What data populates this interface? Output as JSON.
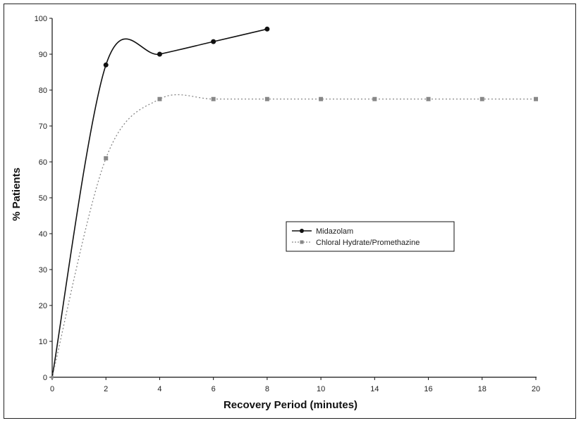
{
  "chart_data": {
    "type": "line",
    "title": "",
    "xlabel": "Recovery Period (minutes)",
    "ylabel": "% Patients",
    "x_ticks": [
      "0",
      "2",
      "4",
      "6",
      "8",
      "10",
      "14",
      "16",
      "18",
      "20"
    ],
    "y_ticks": [
      "0",
      "10",
      "20",
      "30",
      "40",
      "50",
      "60",
      "70",
      "80",
      "90",
      "100"
    ],
    "ylim": [
      0,
      100
    ],
    "legend_position": "center-right",
    "series": [
      {
        "name": "Midazolam",
        "x": [
          "0",
          "2",
          "4",
          "6",
          "8"
        ],
        "values": [
          0,
          87,
          90,
          93.5,
          97
        ],
        "color": "#111111",
        "line_style": "solid",
        "marker": "circle"
      },
      {
        "name": "Chloral Hydrate/Promethazine",
        "x": [
          "0",
          "2",
          "4",
          "6",
          "8",
          "10",
          "14",
          "16",
          "18",
          "20"
        ],
        "values": [
          0,
          61,
          77.5,
          77.5,
          77.5,
          77.5,
          77.5,
          77.5,
          77.5,
          77.5
        ],
        "color": "#888888",
        "line_style": "dotted",
        "marker": "square"
      }
    ]
  }
}
